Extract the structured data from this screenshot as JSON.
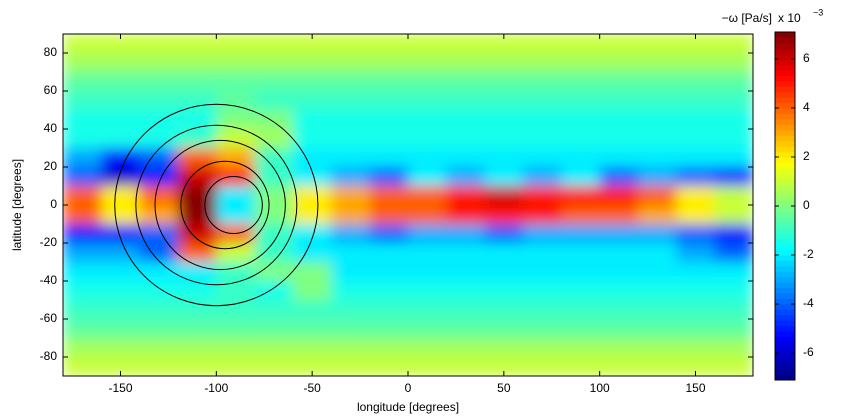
{
  "chart_data": {
    "type": "contour",
    "xlabel": "longitude [degrees]",
    "ylabel": "latitude [degrees]",
    "colorbar_label": "−ω [Pa/s]",
    "colorbar_scale": "x 10",
    "colorbar_exponent": "−3",
    "colormap": "jet",
    "xlim": [
      -180,
      180
    ],
    "xticks": [
      -150,
      -100,
      -50,
      0,
      50,
      100,
      150
    ],
    "ylim": [
      -90,
      90
    ],
    "yticks": [
      -80,
      -60,
      -40,
      -20,
      0,
      20,
      40,
      60,
      80
    ],
    "clim": [
      -7.1,
      7.1
    ],
    "cticks": [
      -6,
      -4,
      -2,
      0,
      2,
      4,
      6
    ],
    "x": [
      -170,
      -150,
      -130,
      -110,
      -90,
      -70,
      -50,
      -30,
      -10,
      10,
      30,
      50,
      70,
      90,
      110,
      130,
      150,
      170
    ],
    "y": [
      85,
      75,
      65,
      55,
      45,
      35,
      25,
      15,
      5,
      -5,
      -15,
      -25,
      -35,
      -45,
      -55,
      -65,
      -75,
      -85
    ],
    "z": [
      [
        1,
        1,
        1,
        1,
        1,
        1,
        1,
        1,
        1,
        1,
        1,
        1,
        1,
        1,
        1,
        1,
        1,
        1
      ],
      [
        0.5,
        0.5,
        0.5,
        0.5,
        0.5,
        0.5,
        0.5,
        0.5,
        0.5,
        0.5,
        0.5,
        0.5,
        0.5,
        0.5,
        0.5,
        0.5,
        0.5,
        0.5
      ],
      [
        -0.5,
        -0.5,
        -0.5,
        -0.5,
        -0.5,
        -0.5,
        -0.5,
        -0.5,
        -0.5,
        -0.5,
        -0.5,
        -0.5,
        -0.5,
        -0.5,
        -0.5,
        -0.5,
        -0.5,
        -0.5
      ],
      [
        -1,
        -1,
        -1,
        -1,
        -0.5,
        -1,
        -1,
        -1,
        -1,
        -1,
        -1,
        -1,
        -1,
        -1,
        -1,
        -1,
        -1,
        -1
      ],
      [
        -1.5,
        -1.5,
        -1.5,
        -1.5,
        0,
        0,
        -1.5,
        -1.5,
        -1.5,
        -1.5,
        -1.5,
        -1.5,
        -1.5,
        -1.5,
        -1.5,
        -1.5,
        -1.5,
        -1.5
      ],
      [
        -1.5,
        -1.5,
        -1.5,
        -1,
        1,
        0.5,
        -1.5,
        -1.5,
        -1.5,
        -1.5,
        -1.5,
        -1.5,
        -1.5,
        -1.5,
        -1.5,
        -1.5,
        -1.5,
        -1.5
      ],
      [
        -3,
        -5,
        -4,
        4,
        3,
        -1,
        -2,
        -2,
        -2,
        -2,
        -2,
        -2,
        -2,
        -2,
        -2,
        -2,
        -2,
        -2
      ],
      [
        -4,
        -6,
        -5,
        6,
        5,
        -1,
        -2,
        -3,
        -4,
        -2,
        -3,
        -2,
        -3,
        -2,
        -4,
        -3,
        -4,
        -5
      ],
      [
        4,
        2,
        4,
        7,
        -2,
        0,
        2,
        3,
        4,
        4,
        5,
        6,
        5,
        5,
        5,
        4,
        2,
        1
      ],
      [
        4,
        2,
        3,
        7,
        -2,
        0,
        2,
        3,
        4,
        4,
        5,
        5,
        5,
        4,
        4,
        3,
        2,
        1
      ],
      [
        -5,
        -5,
        -4,
        6,
        4,
        -1,
        -2,
        -3,
        -4,
        -3,
        -3,
        -4,
        -3,
        -3,
        -3,
        -3,
        -4,
        -5
      ],
      [
        -3,
        -3,
        -4,
        4,
        1,
        -1,
        -2,
        -2,
        -2,
        -2,
        -2,
        -2,
        -2,
        -2,
        -2,
        -2,
        -3,
        -4
      ],
      [
        -2,
        -2,
        -2,
        -2,
        -1,
        0,
        0,
        -2,
        -2,
        -2,
        -2,
        -2,
        -2,
        -2,
        -2,
        -2,
        -2,
        -2
      ],
      [
        -1.5,
        -1.5,
        -1.5,
        -1.5,
        -1,
        -1.5,
        0,
        -1.5,
        -1.5,
        -1.5,
        -1.5,
        -1.5,
        -1.5,
        -1.5,
        -1.5,
        -1.5,
        -1.5,
        -1.5
      ],
      [
        -1,
        -1,
        -1,
        -1,
        -1,
        -1,
        -1,
        -1,
        -1,
        -1,
        -1,
        -1,
        -1,
        -1,
        -1,
        -1,
        -1,
        -1
      ],
      [
        -0.5,
        -0.5,
        -0.5,
        -0.5,
        -0.5,
        -0.5,
        -0.5,
        -0.5,
        -0.5,
        -0.5,
        -0.5,
        -0.5,
        -0.5,
        -0.5,
        -0.5,
        -0.5,
        -0.5,
        -0.5
      ],
      [
        0.5,
        0.5,
        0.5,
        0.5,
        0.5,
        0.5,
        0.5,
        0.5,
        0.5,
        0.5,
        0.5,
        0.5,
        0.5,
        0.5,
        0.5,
        0.5,
        0.5,
        0.5
      ],
      [
        1,
        1,
        1,
        1,
        1,
        1,
        1,
        1,
        1,
        1,
        1,
        1,
        1,
        1,
        1,
        1,
        1,
        1
      ]
    ],
    "circles": [
      {
        "lon": -100,
        "lat": 0,
        "r": 53
      },
      {
        "lon": -100,
        "lat": 0,
        "r": 42
      },
      {
        "lon": -98,
        "lat": 0,
        "r": 34
      },
      {
        "lon": -95.5,
        "lat": 0,
        "r": 23
      },
      {
        "lon": -91,
        "lat": 0,
        "r": 15
      }
    ]
  }
}
